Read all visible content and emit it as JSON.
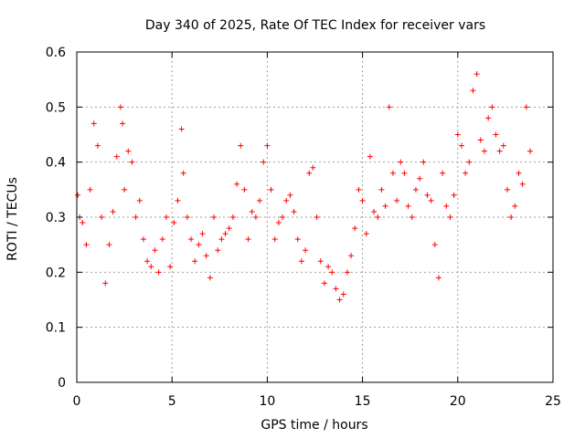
{
  "chart_data": {
    "type": "scatter",
    "title": "Day 340 of 2025, Rate Of TEC Index for receiver vars",
    "xlabel": "GPS time / hours",
    "ylabel": "ROTI / TECUs",
    "xlim": [
      0,
      25
    ],
    "ylim": [
      0,
      0.6
    ],
    "xticks": [
      0,
      5,
      10,
      15,
      20,
      25
    ],
    "xtick_labels": [
      "0",
      "5",
      "10",
      "15",
      "20",
      "25"
    ],
    "yticks": [
      0,
      0.1,
      0.2,
      0.3,
      0.4,
      0.5,
      0.6
    ],
    "ytick_labels": [
      "0",
      "0.1",
      "0.2",
      "0.3",
      "0.4",
      "0.5",
      "0.6"
    ],
    "grid": true,
    "marker": "+",
    "series": [
      {
        "color": "#ff0000",
        "x": [
          0.05,
          0.15,
          0.3,
          0.5,
          0.7,
          0.9,
          1.1,
          1.3,
          1.5,
          1.7,
          1.9,
          2.1,
          2.3,
          2.4,
          2.5,
          2.7,
          2.9,
          3.1,
          3.3,
          3.5,
          3.7,
          3.9,
          4.1,
          4.3,
          4.5,
          4.7,
          4.9,
          5.1,
          5.3,
          5.5,
          5.6,
          5.8,
          6.0,
          6.2,
          6.4,
          6.6,
          6.8,
          7.0,
          7.2,
          7.4,
          7.6,
          7.8,
          8.0,
          8.2,
          8.4,
          8.6,
          8.8,
          9.0,
          9.2,
          9.4,
          9.6,
          9.8,
          10.0,
          10.2,
          10.4,
          10.6,
          10.8,
          11.0,
          11.2,
          11.4,
          11.6,
          11.8,
          12.0,
          12.2,
          12.4,
          12.6,
          12.8,
          13.0,
          13.2,
          13.4,
          13.6,
          13.8,
          14.0,
          14.2,
          14.4,
          14.6,
          14.8,
          15.0,
          15.2,
          15.4,
          15.6,
          15.8,
          16.0,
          16.2,
          16.4,
          16.6,
          16.8,
          17.0,
          17.2,
          17.4,
          17.6,
          17.8,
          18.0,
          18.2,
          18.4,
          18.6,
          18.8,
          19.0,
          19.2,
          19.4,
          19.6,
          19.8,
          20.0,
          20.2,
          20.4,
          20.6,
          20.8,
          21.0,
          21.2,
          21.4,
          21.6,
          21.8,
          22.0,
          22.2,
          22.4,
          22.6,
          22.8,
          23.0,
          23.2,
          23.4,
          23.6,
          23.8
        ],
        "y": [
          0.34,
          0.3,
          0.29,
          0.25,
          0.35,
          0.47,
          0.43,
          0.3,
          0.18,
          0.25,
          0.31,
          0.41,
          0.5,
          0.47,
          0.35,
          0.42,
          0.4,
          0.3,
          0.33,
          0.26,
          0.22,
          0.21,
          0.24,
          0.2,
          0.26,
          0.3,
          0.21,
          0.29,
          0.33,
          0.46,
          0.38,
          0.3,
          0.26,
          0.22,
          0.25,
          0.27,
          0.23,
          0.19,
          0.3,
          0.24,
          0.26,
          0.27,
          0.28,
          0.3,
          0.36,
          0.43,
          0.35,
          0.26,
          0.31,
          0.3,
          0.33,
          0.4,
          0.43,
          0.35,
          0.26,
          0.29,
          0.3,
          0.33,
          0.34,
          0.31,
          0.26,
          0.22,
          0.24,
          0.38,
          0.39,
          0.3,
          0.22,
          0.18,
          0.21,
          0.2,
          0.17,
          0.15,
          0.16,
          0.2,
          0.23,
          0.28,
          0.35,
          0.33,
          0.27,
          0.41,
          0.31,
          0.3,
          0.35,
          0.32,
          0.5,
          0.38,
          0.33,
          0.4,
          0.38,
          0.32,
          0.3,
          0.35,
          0.37,
          0.4,
          0.34,
          0.33,
          0.25,
          0.19,
          0.38,
          0.32,
          0.3,
          0.34,
          0.45,
          0.43,
          0.38,
          0.4,
          0.53,
          0.56,
          0.44,
          0.42,
          0.48,
          0.5,
          0.45,
          0.42,
          0.43,
          0.35,
          0.3,
          0.32,
          0.38,
          0.36,
          0.5,
          0.42
        ]
      }
    ]
  }
}
